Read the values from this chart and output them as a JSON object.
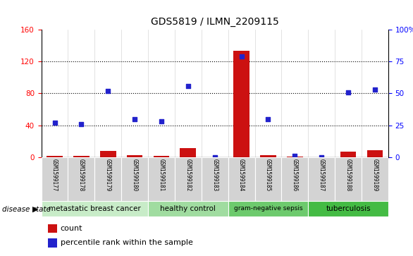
{
  "title": "GDS5819 / ILMN_2209115",
  "samples": [
    "GSM1599177",
    "GSM1599178",
    "GSM1599179",
    "GSM1599180",
    "GSM1599181",
    "GSM1599182",
    "GSM1599183",
    "GSM1599184",
    "GSM1599185",
    "GSM1599186",
    "GSM1599187",
    "GSM1599188",
    "GSM1599189"
  ],
  "counts": [
    2,
    2,
    8,
    3,
    2,
    12,
    0,
    133,
    3,
    1,
    0,
    7,
    9
  ],
  "percentiles": [
    27,
    26,
    52,
    30,
    28,
    56,
    0,
    79,
    30,
    1,
    0,
    51,
    53
  ],
  "ylim_left": [
    0,
    160
  ],
  "ylim_right": [
    0,
    100
  ],
  "yticks_left": [
    0,
    40,
    80,
    120,
    160
  ],
  "yticks_right": [
    0,
    25,
    50,
    75,
    100
  ],
  "ytick_labels_right": [
    "0",
    "25",
    "50",
    "75",
    "100%"
  ],
  "disease_groups": [
    {
      "label": "metastatic breast cancer",
      "start": 0,
      "end": 4,
      "color": "#c8ecc8"
    },
    {
      "label": "healthy control",
      "start": 4,
      "end": 7,
      "color": "#a0dca0"
    },
    {
      "label": "gram-negative sepsis",
      "start": 7,
      "end": 10,
      "color": "#6dca6d"
    },
    {
      "label": "tuberculosis",
      "start": 10,
      "end": 13,
      "color": "#44bb44"
    }
  ],
  "bar_color": "#cc1111",
  "scatter_color": "#2222cc",
  "sample_bg_color": "#d3d3d3",
  "disease_state_label": "disease state",
  "legend_count_label": "count",
  "legend_percentile_label": "percentile rank within the sample"
}
